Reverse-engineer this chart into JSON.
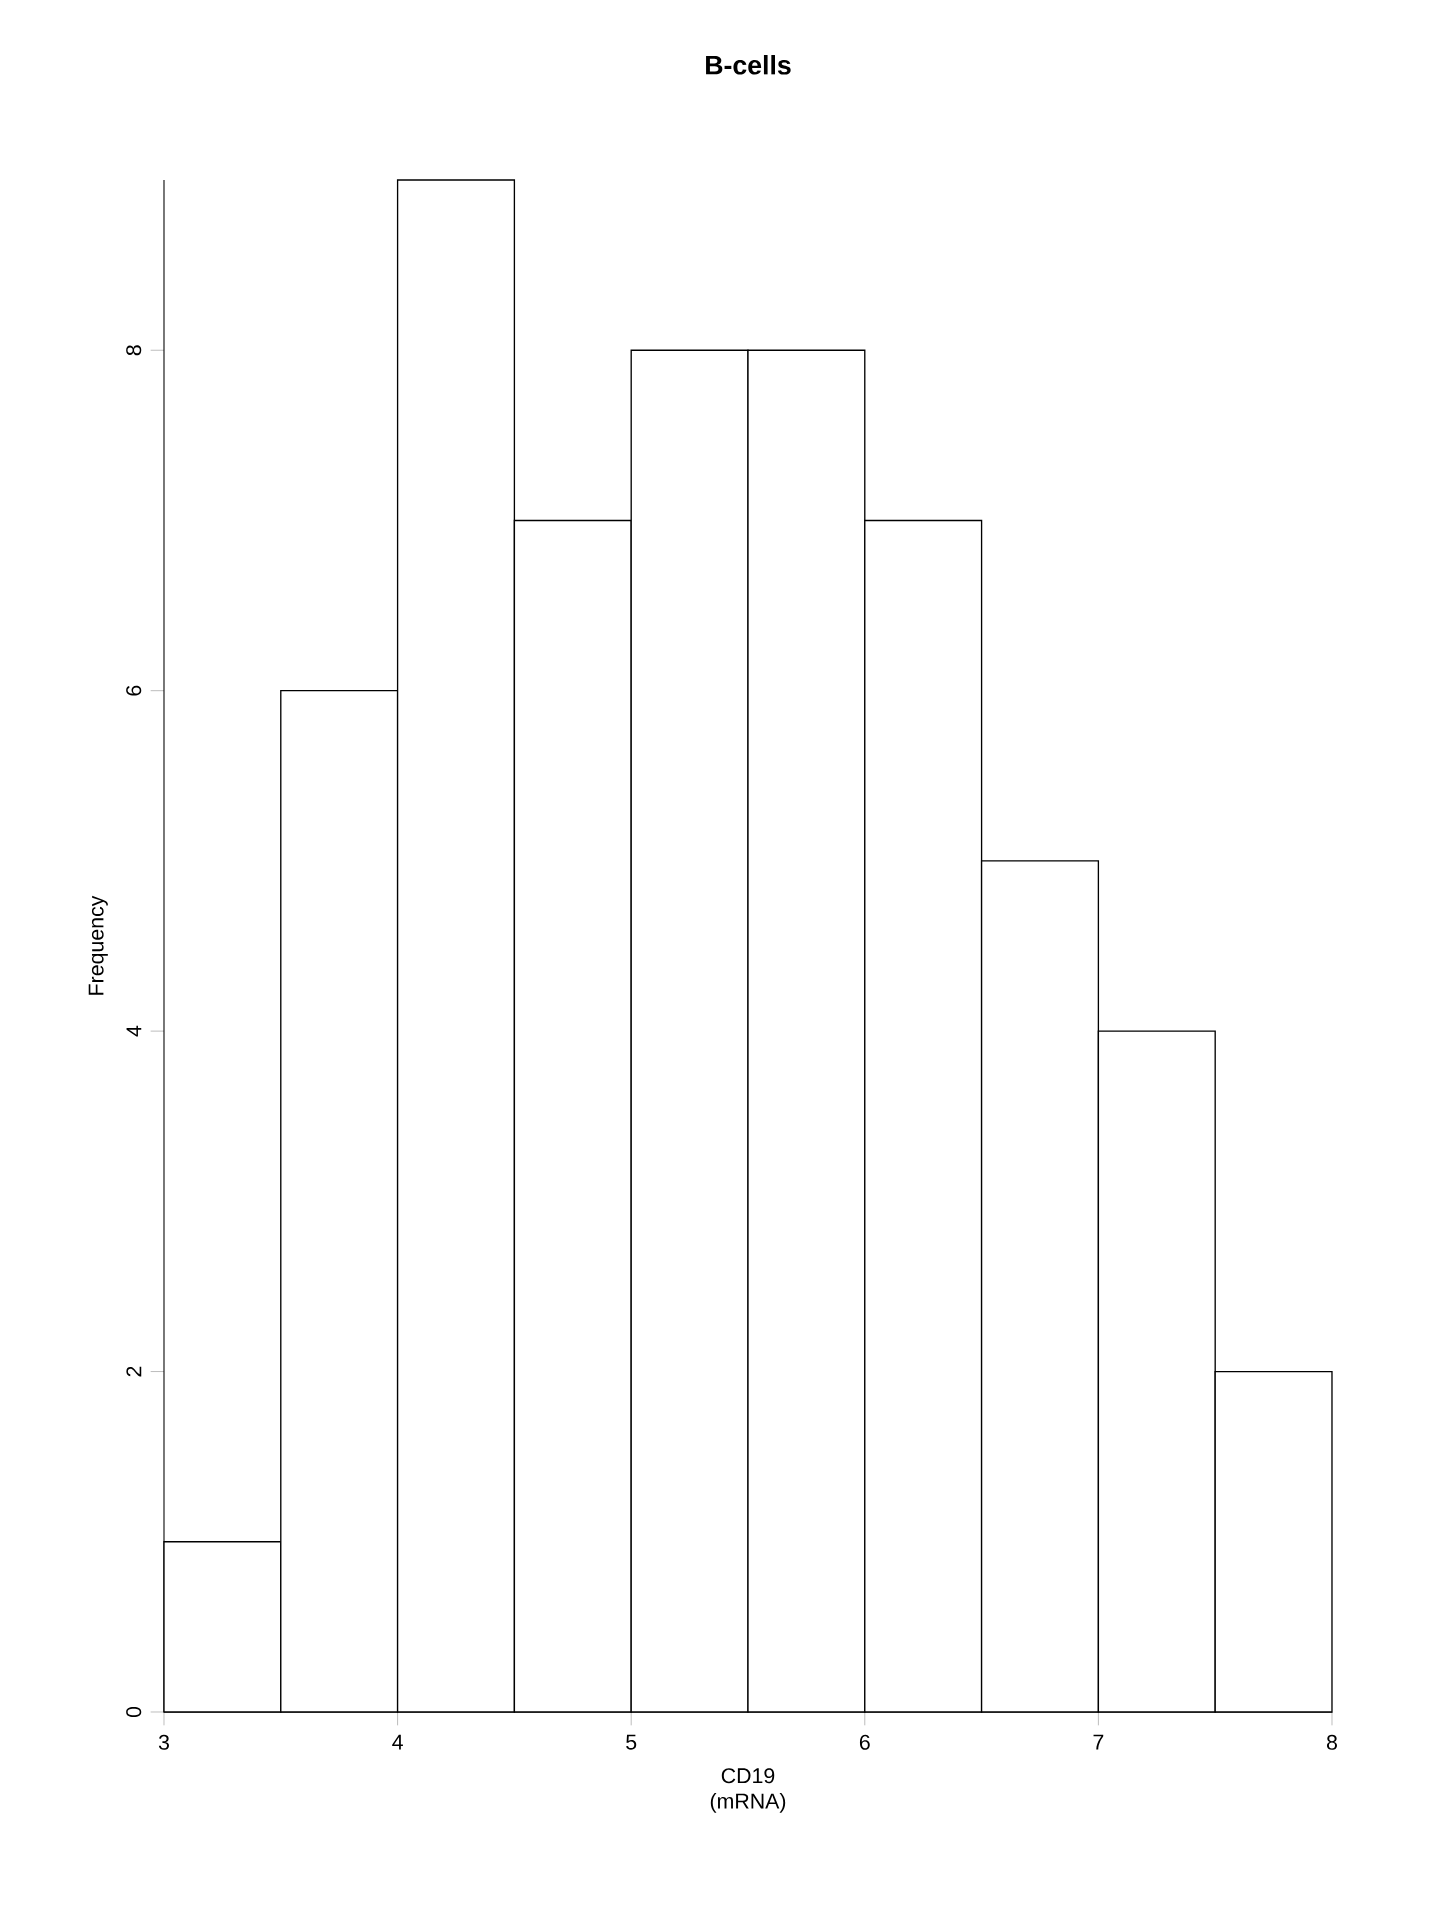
{
  "chart_data": {
    "type": "histogram",
    "title": "B-cells",
    "xlabel": "CD19 (mRNA)",
    "ylabel": "Frequency",
    "bins": [
      3,
      3.5,
      4,
      4.5,
      5,
      5.5,
      6,
      6.5,
      7,
      7.5,
      8
    ],
    "values": [
      1,
      6,
      9,
      7,
      8,
      8,
      7,
      5,
      4,
      2
    ],
    "color": "#ffffff",
    "xlim": [
      3,
      8
    ],
    "xticks": [
      3,
      4,
      5,
      6,
      7,
      8
    ],
    "ylim": [
      0,
      9
    ],
    "yticks": [
      0,
      2,
      4,
      6,
      8
    ],
    "grid": false
  }
}
